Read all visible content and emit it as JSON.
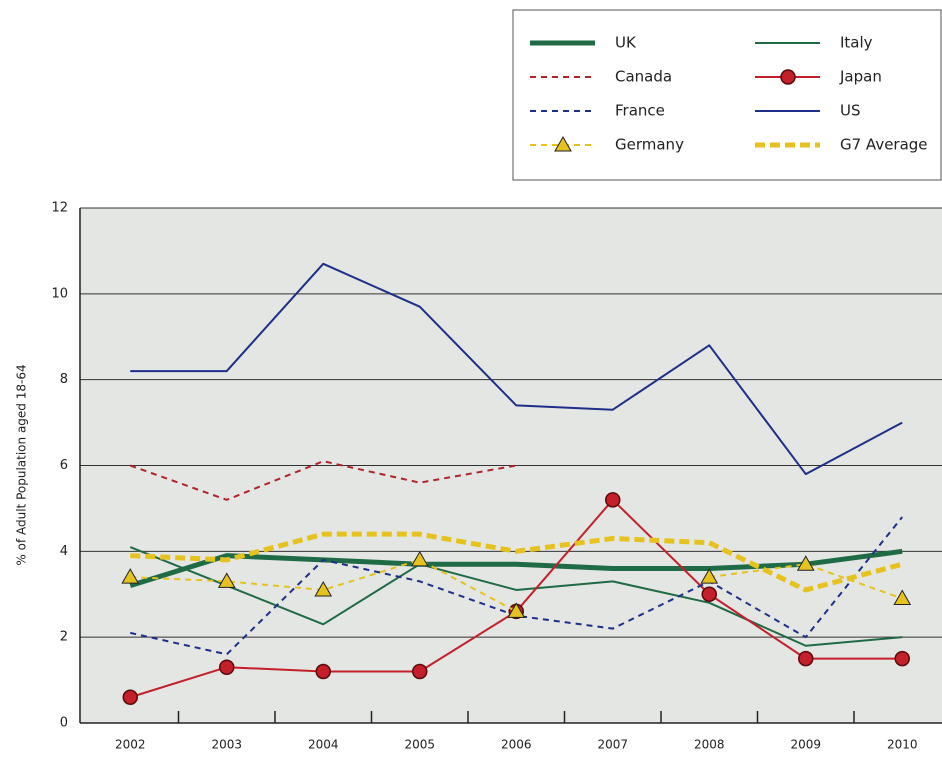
{
  "chart_data": {
    "type": "line",
    "y_label": "% of Adult Population aged 18-64",
    "categories": [
      "2002",
      "2003",
      "2004",
      "2005",
      "2006",
      "2007",
      "2008",
      "2009",
      "2010"
    ],
    "ylim": [
      0,
      12
    ],
    "yticks": [
      0,
      2,
      4,
      6,
      8,
      10,
      12
    ],
    "grid": true,
    "series": [
      {
        "name": "UK",
        "color": "#1e6b45",
        "width": 5,
        "dash": false,
        "values": [
          3.2,
          3.9,
          3.8,
          3.7,
          3.7,
          3.6,
          3.6,
          3.7,
          4.0
        ]
      },
      {
        "name": "Italy",
        "color": "#1e6b45",
        "width": 2,
        "dash": false,
        "values": [
          4.1,
          3.2,
          2.3,
          3.7,
          3.1,
          3.3,
          2.8,
          1.8,
          2.0
        ]
      },
      {
        "name": "Canada",
        "color": "#b3222a",
        "width": 2,
        "dash": true,
        "values": [
          6.0,
          5.2,
          6.1,
          5.6,
          6.0,
          null,
          null,
          null,
          null
        ]
      },
      {
        "name": "Japan",
        "color": "#c4202b",
        "width": 2,
        "dash": false,
        "marker": "circle",
        "values": [
          0.6,
          1.3,
          1.2,
          1.2,
          2.6,
          5.2,
          3.0,
          1.5,
          1.5
        ]
      },
      {
        "name": "France",
        "color": "#1d2f8a",
        "width": 2,
        "dash": true,
        "values": [
          2.1,
          1.6,
          3.8,
          3.3,
          2.5,
          2.2,
          3.3,
          2.0,
          4.8
        ]
      },
      {
        "name": "US",
        "color": "#1d2f8a",
        "width": 2,
        "dash": false,
        "values": [
          8.2,
          8.2,
          10.7,
          9.7,
          7.4,
          7.3,
          8.8,
          5.8,
          7.0
        ]
      },
      {
        "name": "Germany",
        "color": "#e6c21e",
        "width": 2,
        "dash": true,
        "marker": "triangle",
        "values": [
          3.4,
          3.3,
          3.1,
          3.8,
          2.6,
          null,
          3.4,
          3.7,
          2.9
        ]
      },
      {
        "name": "G7 Average",
        "color": "#e6c21e",
        "width": 5,
        "dash": true,
        "values": [
          3.9,
          3.8,
          4.4,
          4.4,
          4.0,
          4.3,
          4.2,
          3.1,
          3.7
        ]
      }
    ]
  }
}
